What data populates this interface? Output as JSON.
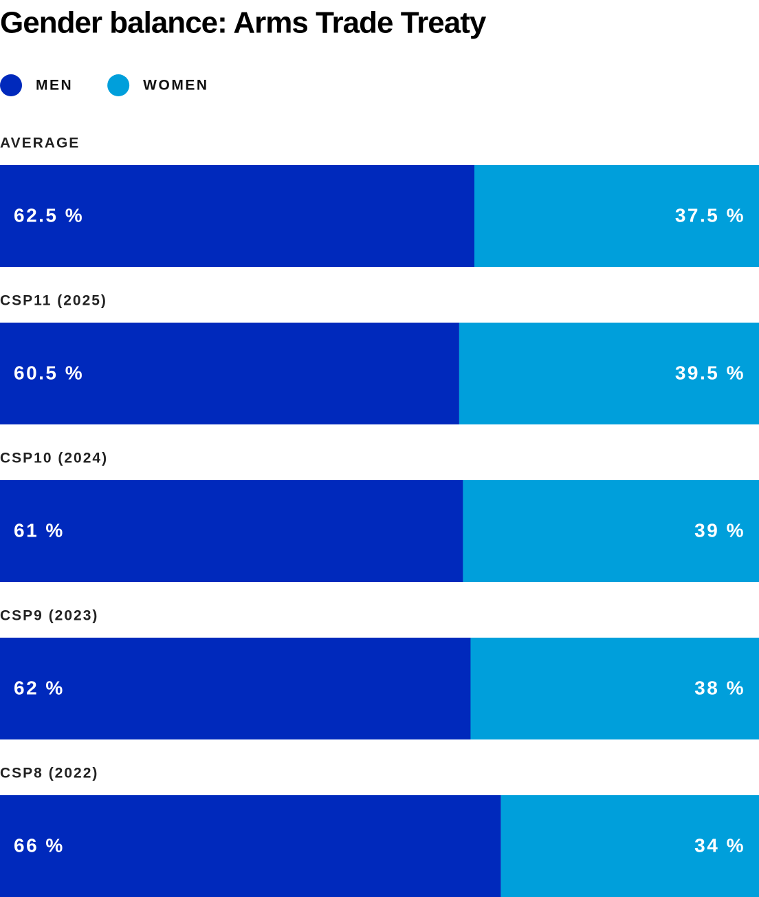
{
  "chart_data": {
    "type": "bar",
    "orientation": "horizontal",
    "stacked": true,
    "title": "Gender balance: Arms Trade Treaty",
    "categories": [
      "AVERAGE",
      "CSP11 (2025)",
      "CSP10 (2024)",
      "CSP9 (2023)",
      "CSP8 (2022)"
    ],
    "series": [
      {
        "name": "MEN",
        "color": "#0029bc",
        "values": [
          62.5,
          60.5,
          61,
          62,
          66
        ],
        "value_labels": [
          "62.5 %",
          "60.5 %",
          "61 %",
          "62 %",
          "66 %"
        ]
      },
      {
        "name": "WOMEN",
        "color": "#009fdb",
        "values": [
          37.5,
          39.5,
          39,
          38,
          34
        ],
        "value_labels": [
          "37.5 %",
          "39.5 %",
          "39 %",
          "38 %",
          "34 %"
        ]
      }
    ]
  }
}
